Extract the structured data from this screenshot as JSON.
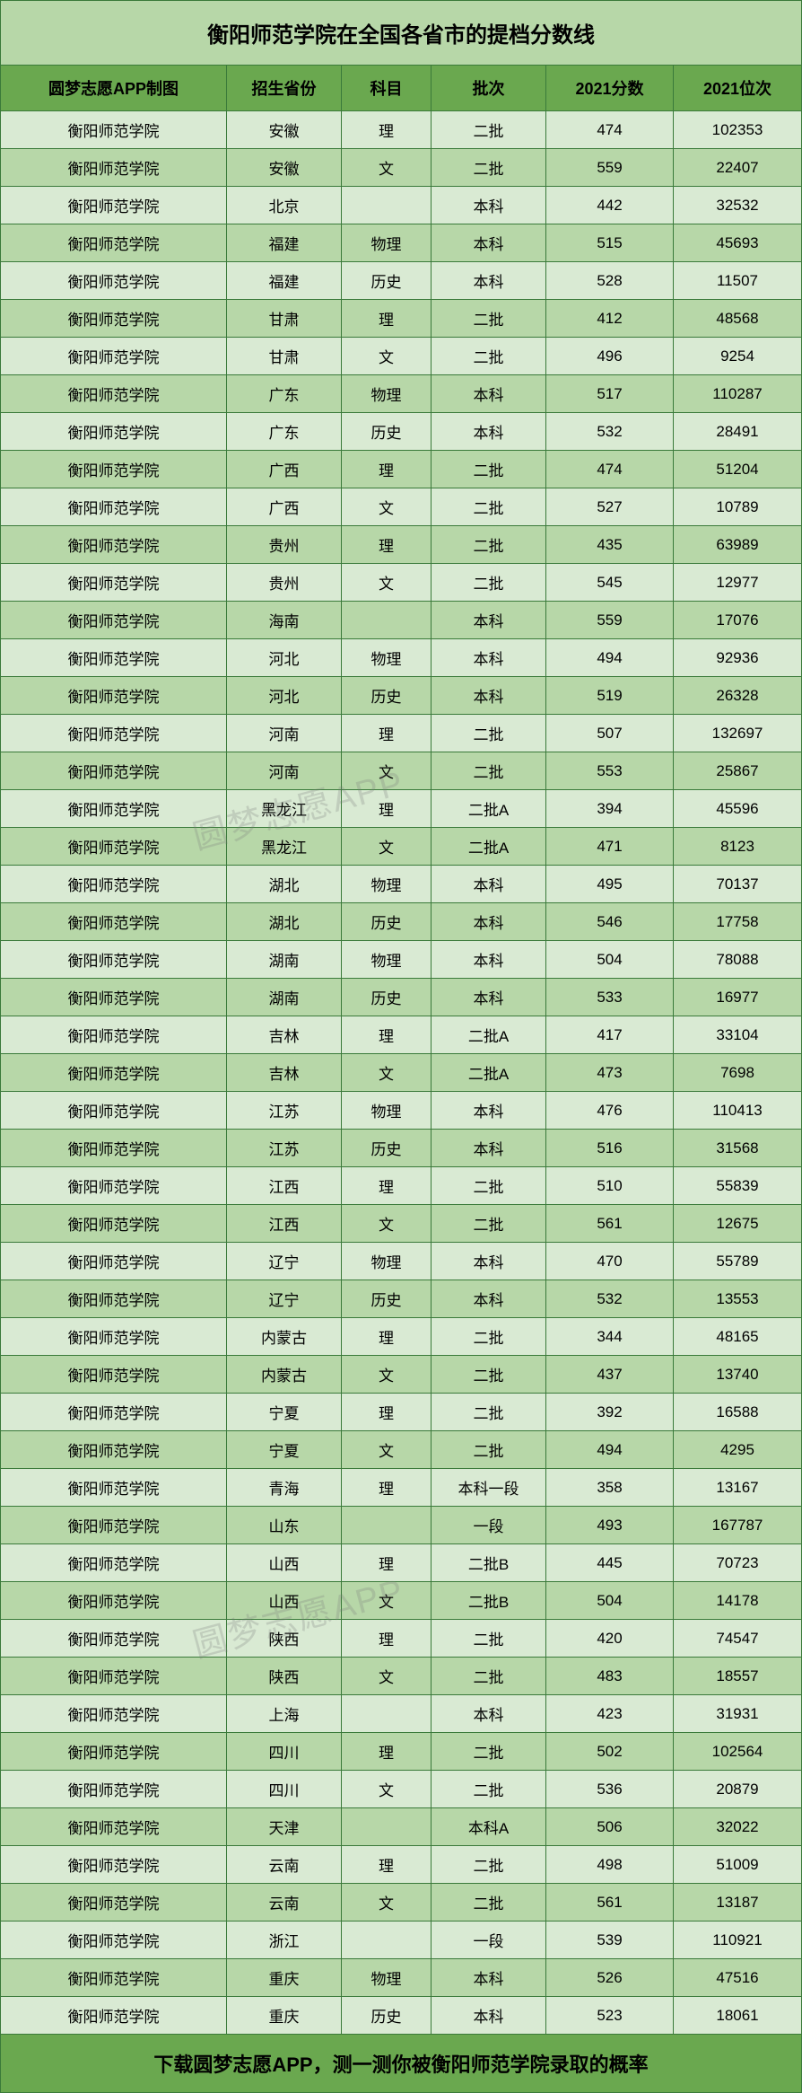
{
  "title": "衡阳师范学院在全国各省市的提档分数线",
  "footer": "下载圆梦志愿APP，测一测你被衡阳师范学院录取的概率",
  "watermark": "圆梦志愿APP",
  "colors": {
    "title_bg": "#b7d7a8",
    "header_bg": "#6aa84f",
    "row_even": "#d9ead3",
    "row_odd": "#b7d7a8",
    "footer_bg": "#6aa84f",
    "border": "#3a7a3a",
    "text": "#000000"
  },
  "columns": [
    "圆梦志愿APP制图",
    "招生省份",
    "科目",
    "批次",
    "2021分数",
    "2021位次"
  ],
  "rows": [
    [
      "衡阳师范学院",
      "安徽",
      "理",
      "二批",
      "474",
      "102353"
    ],
    [
      "衡阳师范学院",
      "安徽",
      "文",
      "二批",
      "559",
      "22407"
    ],
    [
      "衡阳师范学院",
      "北京",
      "",
      "本科",
      "442",
      "32532"
    ],
    [
      "衡阳师范学院",
      "福建",
      "物理",
      "本科",
      "515",
      "45693"
    ],
    [
      "衡阳师范学院",
      "福建",
      "历史",
      "本科",
      "528",
      "11507"
    ],
    [
      "衡阳师范学院",
      "甘肃",
      "理",
      "二批",
      "412",
      "48568"
    ],
    [
      "衡阳师范学院",
      "甘肃",
      "文",
      "二批",
      "496",
      "9254"
    ],
    [
      "衡阳师范学院",
      "广东",
      "物理",
      "本科",
      "517",
      "110287"
    ],
    [
      "衡阳师范学院",
      "广东",
      "历史",
      "本科",
      "532",
      "28491"
    ],
    [
      "衡阳师范学院",
      "广西",
      "理",
      "二批",
      "474",
      "51204"
    ],
    [
      "衡阳师范学院",
      "广西",
      "文",
      "二批",
      "527",
      "10789"
    ],
    [
      "衡阳师范学院",
      "贵州",
      "理",
      "二批",
      "435",
      "63989"
    ],
    [
      "衡阳师范学院",
      "贵州",
      "文",
      "二批",
      "545",
      "12977"
    ],
    [
      "衡阳师范学院",
      "海南",
      "",
      "本科",
      "559",
      "17076"
    ],
    [
      "衡阳师范学院",
      "河北",
      "物理",
      "本科",
      "494",
      "92936"
    ],
    [
      "衡阳师范学院",
      "河北",
      "历史",
      "本科",
      "519",
      "26328"
    ],
    [
      "衡阳师范学院",
      "河南",
      "理",
      "二批",
      "507",
      "132697"
    ],
    [
      "衡阳师范学院",
      "河南",
      "文",
      "二批",
      "553",
      "25867"
    ],
    [
      "衡阳师范学院",
      "黑龙江",
      "理",
      "二批A",
      "394",
      "45596"
    ],
    [
      "衡阳师范学院",
      "黑龙江",
      "文",
      "二批A",
      "471",
      "8123"
    ],
    [
      "衡阳师范学院",
      "湖北",
      "物理",
      "本科",
      "495",
      "70137"
    ],
    [
      "衡阳师范学院",
      "湖北",
      "历史",
      "本科",
      "546",
      "17758"
    ],
    [
      "衡阳师范学院",
      "湖南",
      "物理",
      "本科",
      "504",
      "78088"
    ],
    [
      "衡阳师范学院",
      "湖南",
      "历史",
      "本科",
      "533",
      "16977"
    ],
    [
      "衡阳师范学院",
      "吉林",
      "理",
      "二批A",
      "417",
      "33104"
    ],
    [
      "衡阳师范学院",
      "吉林",
      "文",
      "二批A",
      "473",
      "7698"
    ],
    [
      "衡阳师范学院",
      "江苏",
      "物理",
      "本科",
      "476",
      "110413"
    ],
    [
      "衡阳师范学院",
      "江苏",
      "历史",
      "本科",
      "516",
      "31568"
    ],
    [
      "衡阳师范学院",
      "江西",
      "理",
      "二批",
      "510",
      "55839"
    ],
    [
      "衡阳师范学院",
      "江西",
      "文",
      "二批",
      "561",
      "12675"
    ],
    [
      "衡阳师范学院",
      "辽宁",
      "物理",
      "本科",
      "470",
      "55789"
    ],
    [
      "衡阳师范学院",
      "辽宁",
      "历史",
      "本科",
      "532",
      "13553"
    ],
    [
      "衡阳师范学院",
      "内蒙古",
      "理",
      "二批",
      "344",
      "48165"
    ],
    [
      "衡阳师范学院",
      "内蒙古",
      "文",
      "二批",
      "437",
      "13740"
    ],
    [
      "衡阳师范学院",
      "宁夏",
      "理",
      "二批",
      "392",
      "16588"
    ],
    [
      "衡阳师范学院",
      "宁夏",
      "文",
      "二批",
      "494",
      "4295"
    ],
    [
      "衡阳师范学院",
      "青海",
      "理",
      "本科一段",
      "358",
      "13167"
    ],
    [
      "衡阳师范学院",
      "山东",
      "",
      "一段",
      "493",
      "167787"
    ],
    [
      "衡阳师范学院",
      "山西",
      "理",
      "二批B",
      "445",
      "70723"
    ],
    [
      "衡阳师范学院",
      "山西",
      "文",
      "二批B",
      "504",
      "14178"
    ],
    [
      "衡阳师范学院",
      "陕西",
      "理",
      "二批",
      "420",
      "74547"
    ],
    [
      "衡阳师范学院",
      "陕西",
      "文",
      "二批",
      "483",
      "18557"
    ],
    [
      "衡阳师范学院",
      "上海",
      "",
      "本科",
      "423",
      "31931"
    ],
    [
      "衡阳师范学院",
      "四川",
      "理",
      "二批",
      "502",
      "102564"
    ],
    [
      "衡阳师范学院",
      "四川",
      "文",
      "二批",
      "536",
      "20879"
    ],
    [
      "衡阳师范学院",
      "天津",
      "",
      "本科A",
      "506",
      "32022"
    ],
    [
      "衡阳师范学院",
      "云南",
      "理",
      "二批",
      "498",
      "51009"
    ],
    [
      "衡阳师范学院",
      "云南",
      "文",
      "二批",
      "561",
      "13187"
    ],
    [
      "衡阳师范学院",
      "浙江",
      "",
      "一段",
      "539",
      "110921"
    ],
    [
      "衡阳师范学院",
      "重庆",
      "物理",
      "本科",
      "526",
      "47516"
    ],
    [
      "衡阳师范学院",
      "重庆",
      "历史",
      "本科",
      "523",
      "18061"
    ]
  ]
}
